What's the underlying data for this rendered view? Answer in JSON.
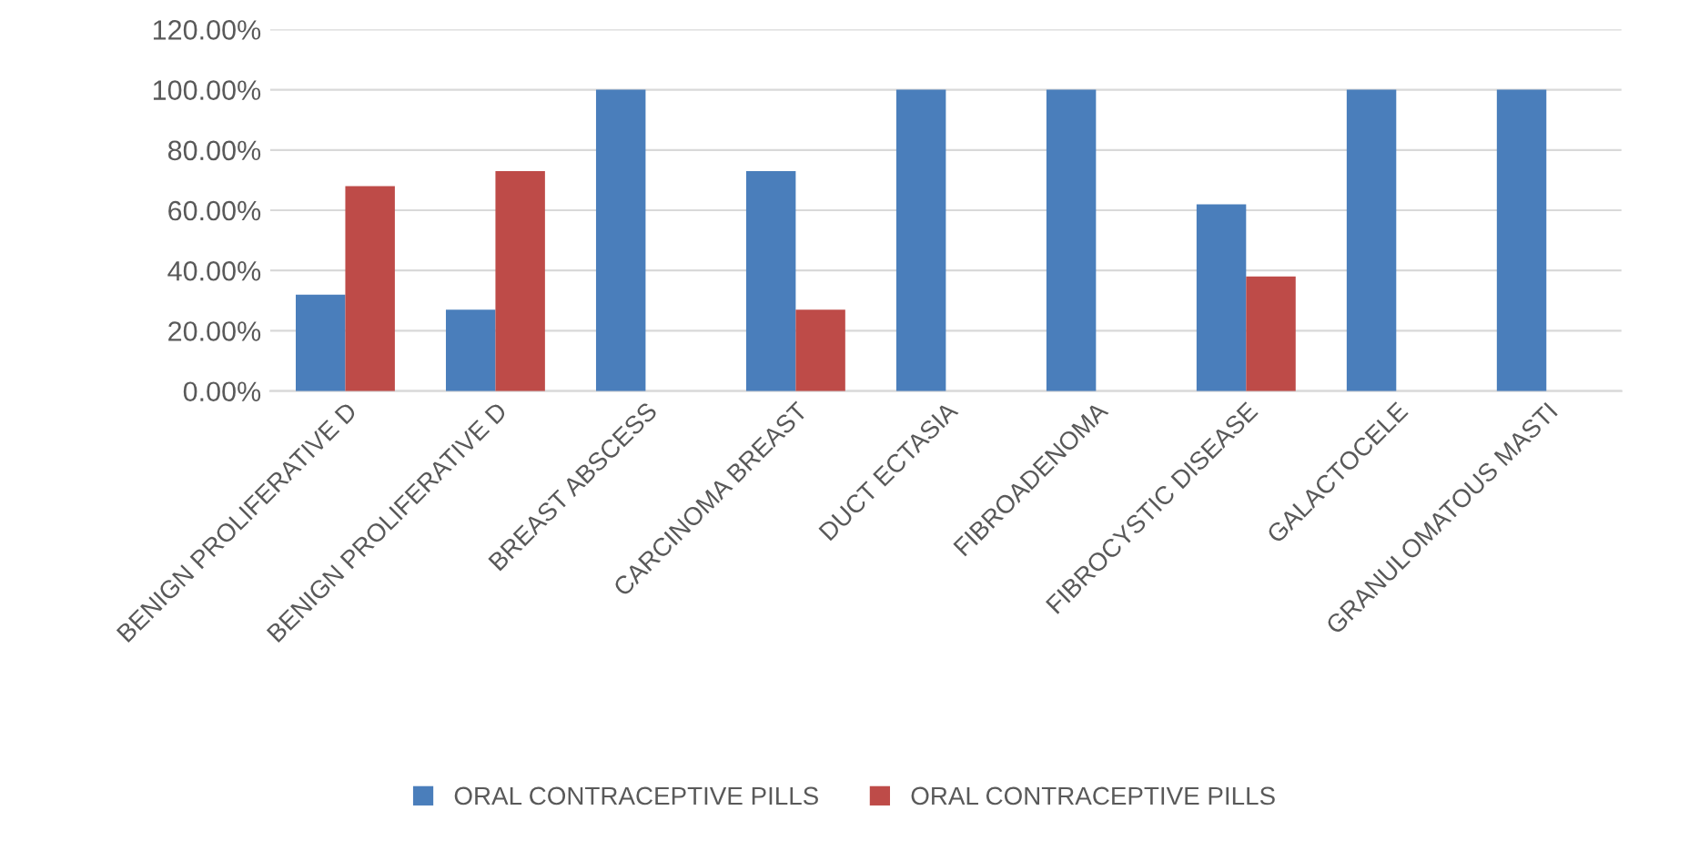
{
  "chart_data": {
    "type": "bar",
    "categories": [
      "BENIGN PROLIFERATIVE D",
      "BENIGN PROLIFERATIVE D",
      "BREAST ABSCESS",
      "CARCINOMA BREAST",
      "DUCT ECTASIA",
      "FIBROADENOMA",
      "FIBROCYSTIC DISEASE",
      "GALACTOCELE",
      "GRANULOMATOUS MASTI"
    ],
    "series": [
      {
        "name": "ORAL CONTRACEPTIVE PILLS",
        "color": "#4a7ebb",
        "values": [
          32,
          27,
          100,
          73,
          100,
          100,
          62,
          100,
          100
        ]
      },
      {
        "name": "ORAL CONTRACEPTIVE PILLS",
        "color": "#be4b48",
        "values": [
          68,
          73,
          null,
          27,
          null,
          null,
          38,
          null,
          null
        ]
      }
    ],
    "ylim": [
      0,
      120
    ],
    "yticks": [
      {
        "value": 0,
        "label": "0.00%"
      },
      {
        "value": 20,
        "label": "20.00%"
      },
      {
        "value": 40,
        "label": "40.00%"
      },
      {
        "value": 60,
        "label": "60.00%"
      },
      {
        "value": 80,
        "label": "80.00%"
      },
      {
        "value": 100,
        "label": "100.00%"
      },
      {
        "value": 120,
        "label": "120.00%"
      }
    ],
    "grid": "y",
    "legend": "bottom"
  }
}
